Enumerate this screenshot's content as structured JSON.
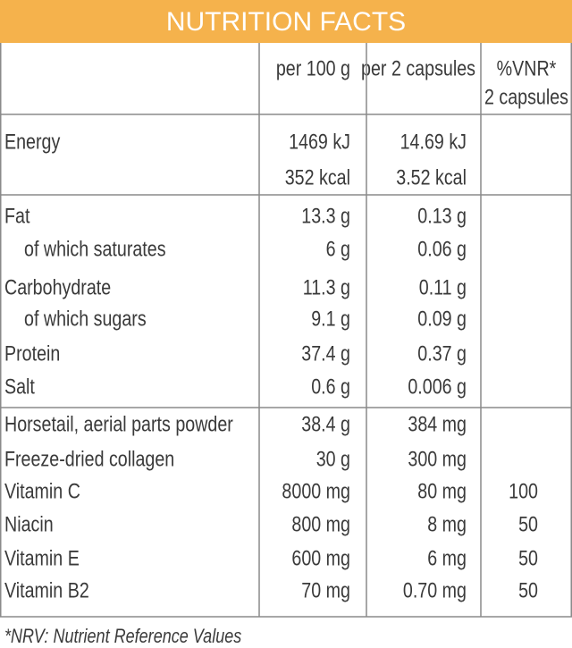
{
  "header": {
    "title": "NUTRITION FACTS"
  },
  "table": {
    "columns": [
      "per 100 g",
      "per 2 capsules"
    ],
    "vnr_header": [
      "%VNR*",
      "2 capsules"
    ],
    "sections": [
      {
        "rows": [
          {
            "label": "Energy",
            "per_100g": [
              "1469 kJ",
              "352 kcal"
            ],
            "per_2_capsules": [
              "14.69 kJ",
              "3.52 kcal"
            ]
          }
        ]
      },
      {
        "rows": [
          {
            "label": "Fat",
            "per_100g": "13.3 g",
            "per_2_capsules": "0.13 g"
          },
          {
            "label": "of which saturates",
            "per_100g": "6 g",
            "per_2_capsules": "0.06 g"
          },
          {
            "label": "Carbohydrate",
            "per_100g": "11.3 g",
            "per_2_capsules": "0.11 g"
          },
          {
            "label": "of which sugars",
            "per_100g": "9.1 g",
            "per_2_capsules": "0.09 g"
          },
          {
            "label": "Protein",
            "per_100g": "37.4 g",
            "per_2_capsules": "0.37 g"
          },
          {
            "label": "Salt",
            "per_100g": "0.6 g",
            "per_2_capsules": "0.006 g"
          }
        ]
      },
      {
        "rows": [
          {
            "label": "Horsetail, aerial parts powder",
            "per_100g": "38.4 g",
            "per_2_capsules": "384 mg"
          },
          {
            "label": "Freeze-dried collagen",
            "per_100g": "30 g",
            "per_2_capsules": "300 mg"
          },
          {
            "label": "Vitamin C",
            "per_100g": "8000 mg",
            "per_2_capsules": "80 mg",
            "vnr": 100
          },
          {
            "label": "Niacin",
            "per_100g": "800 mg",
            "per_2_capsules": "8 mg",
            "vnr": 50
          },
          {
            "label": "Vitamin E",
            "per_100g": "600 mg",
            "per_2_capsules": "6 mg",
            "vnr": 50
          },
          {
            "label": "Vitamin B2",
            "per_100g": "70 mg",
            "per_2_capsules": "0.70 mg",
            "vnr": 50
          }
        ]
      }
    ]
  },
  "footnote": "*NRV: Nutrient Reference Values"
}
